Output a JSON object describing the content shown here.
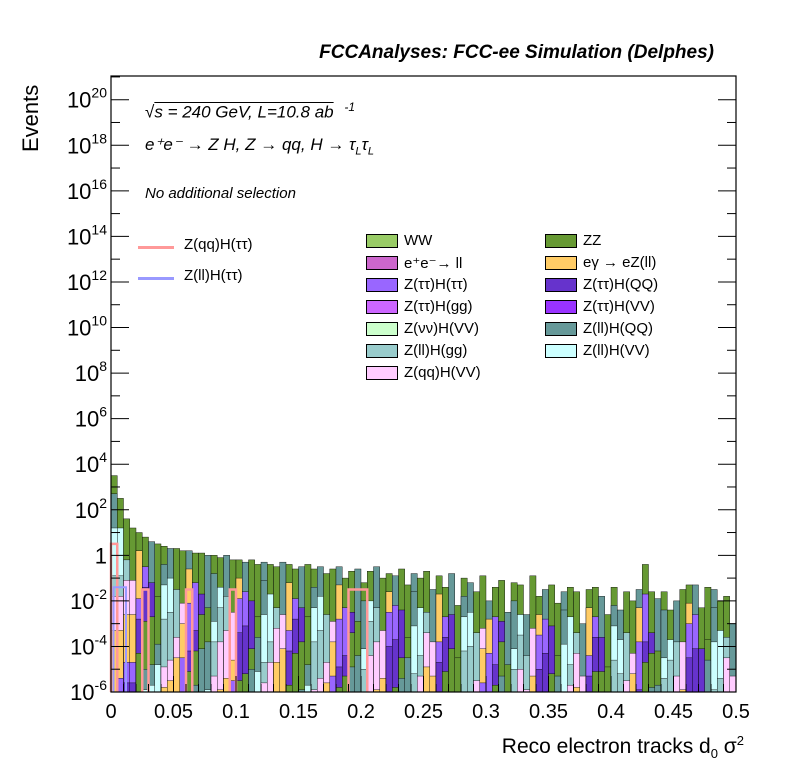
{
  "header": "FCCAnalyses: FCC-ee Simulation (Delphes)",
  "info": {
    "sqrt_s": "s = 240 GeV, L=10.8 ab",
    "lumi_exp": "-1",
    "process": "e⁺e⁻ → Z H, Z → qq, H → τ",
    "sub_L": "L",
    "selection": "No additional selection"
  },
  "chart_data": {
    "type": "histogram",
    "title": "FCCAnalyses: FCC-ee Simulation (Delphes)",
    "xlabel": "Reco electron tracks d0 σ²",
    "ylabel": "Events",
    "xlim": [
      0,
      0.5
    ],
    "ylim": [
      1e-06,
      1e+21
    ],
    "yscale": "log",
    "x_ticks": [
      "0",
      "0.05",
      "0.1",
      "0.15",
      "0.2",
      "0.25",
      "0.3",
      "0.35",
      "0.4",
      "0.45",
      "0.5"
    ],
    "y_ticks_exp": [
      -6,
      -4,
      -2,
      0,
      2,
      4,
      6,
      8,
      10,
      12,
      14,
      16,
      18,
      20
    ],
    "bins": 100,
    "stack_envelope_log10": [
      3.5,
      2.5,
      1.6,
      1.2,
      1.0,
      0.8,
      0.6,
      0.5,
      0.4,
      0.3,
      0.3,
      0.2,
      0.2,
      0.1,
      0.1,
      0.0,
      0.0,
      -0.1,
      0.0,
      -0.2,
      -0.2,
      -0.3,
      -0.2,
      -0.4,
      -0.3,
      -0.4,
      -0.5,
      -0.3,
      -0.4,
      -0.6,
      -0.5,
      -0.4,
      -0.6,
      -0.5,
      -0.8,
      -0.6,
      -0.5,
      -1.0,
      -0.7,
      -0.6,
      -1.2,
      -0.7,
      -0.5,
      -1.0,
      -0.8,
      -0.9,
      -0.6,
      -1.3,
      -0.8,
      -1.0,
      -0.7,
      -1.5,
      -0.9,
      -1.4,
      -0.8,
      -2.2,
      -1.0,
      -1.2,
      -1.6,
      -0.9,
      -2.0,
      -1.4,
      -1.1,
      -2.5,
      -1.2,
      -1.3,
      -2.6,
      -0.9,
      -1.8,
      -1.5,
      -1.3,
      -2.1,
      -1.6,
      -1.4,
      -1.6,
      -3.0,
      -1.5,
      -1.4,
      -1.8,
      -2.6,
      -1.4,
      -2.4,
      -1.6,
      -2.0,
      -1.5,
      -0.4,
      -1.6,
      -1.9,
      -1.6,
      -2.4,
      -2.0,
      -1.5,
      -1.3,
      -1.3,
      -2.3,
      -1.4,
      -1.5,
      -2.0,
      -1.8,
      -3.0
    ],
    "signal_overlay_log10": [
      {
        "name": "Z(qq)H(ττ)",
        "x_range": [
          0.0,
          0.005
        ],
        "value": 0.5
      },
      {
        "name": "Z(qq)H(ττ)",
        "x_range": [
          0.025,
          0.03
        ],
        "value": -1.5
      },
      {
        "name": "Z(qq)H(ττ)",
        "x_range": [
          0.06,
          0.065
        ],
        "value": -1.5
      },
      {
        "name": "Z(qq)H(ττ)",
        "x_range": [
          0.095,
          0.1
        ],
        "value": -1.5
      },
      {
        "name": "Z(qq)H(ττ)",
        "x_range": [
          0.19,
          0.205
        ],
        "value": -1.5
      }
    ],
    "series": [
      {
        "name": "WW",
        "color": "#99cc66",
        "type": "stack"
      },
      {
        "name": "ZZ",
        "color": "#669933",
        "type": "stack"
      },
      {
        "name": "e⁺e⁻→ ll",
        "color": "#cc66cc",
        "type": "stack"
      },
      {
        "name": "eγ → eZ(ll)",
        "color": "#ffcc66",
        "type": "stack"
      },
      {
        "name": "Z(ττ)H(ττ)",
        "color": "#9966ff",
        "type": "stack"
      },
      {
        "name": "Z(ττ)H(QQ)",
        "color": "#6633cc",
        "type": "stack"
      },
      {
        "name": "Z(ττ)H(gg)",
        "color": "#cc66ff",
        "type": "stack"
      },
      {
        "name": "Z(ττ)H(VV)",
        "color": "#9933ff",
        "type": "stack"
      },
      {
        "name": "Z(νν)H(VV)",
        "color": "#ccffcc",
        "type": "stack"
      },
      {
        "name": "Z(ll)H(QQ)",
        "color": "#669999",
        "type": "stack"
      },
      {
        "name": "Z(ll)H(gg)",
        "color": "#99cccc",
        "type": "stack"
      },
      {
        "name": "Z(ll)H(VV)",
        "color": "#ccffff",
        "type": "stack"
      },
      {
        "name": "Z(qq)H(VV)",
        "color": "#ffccff",
        "type": "stack"
      },
      {
        "name": "Z(qq)H(ττ)",
        "color": "#ff9999",
        "type": "line"
      },
      {
        "name": "Z(ll)H(ττ)",
        "color": "#9999ff",
        "type": "line"
      }
    ]
  },
  "legend_stack": [
    {
      "label": "WW",
      "color": "#99cc66",
      "col": 0,
      "row": 0
    },
    {
      "label": "ZZ",
      "color": "#669933",
      "col": 1,
      "row": 0
    },
    {
      "label": "e⁺e⁻→ ll",
      "color": "#cc66cc",
      "col": 0,
      "row": 1
    },
    {
      "label": "eγ → eZ(ll)",
      "color": "#ffcc66",
      "col": 1,
      "row": 1
    },
    {
      "label": "Z(ττ)H(ττ)",
      "color": "#9966ff",
      "col": 0,
      "row": 2
    },
    {
      "label": "Z(ττ)H(QQ)",
      "color": "#6633cc",
      "col": 1,
      "row": 2
    },
    {
      "label": "Z(ττ)H(gg)",
      "color": "#cc66ff",
      "col": 0,
      "row": 3
    },
    {
      "label": "Z(ττ)H(VV)",
      "color": "#9933ff",
      "col": 1,
      "row": 3
    },
    {
      "label": "Z(νν)H(VV)",
      "color": "#ccffcc",
      "col": 0,
      "row": 4
    },
    {
      "label": "Z(ll)H(QQ)",
      "color": "#669999",
      "col": 1,
      "row": 4
    },
    {
      "label": "Z(ll)H(gg)",
      "color": "#99cccc",
      "col": 0,
      "row": 5
    },
    {
      "label": "Z(ll)H(VV)",
      "color": "#ccffff",
      "col": 1,
      "row": 5
    },
    {
      "label": "Z(qq)H(VV)",
      "color": "#ffccff",
      "col": 0,
      "row": 6
    }
  ],
  "legend_lines": [
    {
      "label": "Z(qq)H(ττ)",
      "color": "#ff9999"
    },
    {
      "label": "Z(ll)H(ττ)",
      "color": "#9999ff"
    }
  ]
}
